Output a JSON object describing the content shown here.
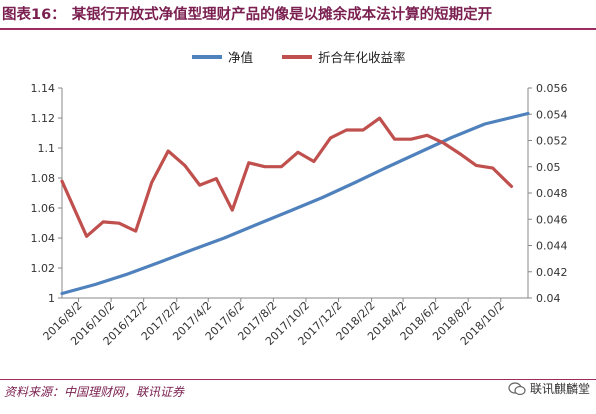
{
  "header": {
    "figure_label": "图表16：",
    "title": "某银行开放式净值型理财产品的像是以摊余成本法计算的短期定开"
  },
  "footer": {
    "source": "资料来源：中国理财网，联讯证券",
    "watermark": "联讯麒麟堂"
  },
  "colors": {
    "nav": "#4f81bd",
    "yield": "#c0504d",
    "accent": "#9c2c60"
  },
  "chart_data": {
    "type": "line",
    "x_tick_labels": [
      "2016/8/2",
      "2016/10/2",
      "2016/12/2",
      "2017/2/2",
      "2017/4/2",
      "2017/6/2",
      "2017/8/2",
      "2017/10/2",
      "2017/12/2",
      "2018/2/2",
      "2018/4/2",
      "2018/6/2",
      "2018/8/2",
      "2018/10/2"
    ],
    "x_range": [
      "2016-07-02",
      "2018-11-22"
    ],
    "y_left": {
      "min": 1,
      "max": 1.14,
      "ticks": [
        "1",
        "1.02",
        "1.04",
        "1.06",
        "1.08",
        "1.1",
        "1.12",
        "1.14"
      ]
    },
    "y_right": {
      "min": 0.04,
      "max": 0.056,
      "ticks": [
        "0.04",
        "0.042",
        "0.044",
        "0.046",
        "0.048",
        "0.05",
        "0.052",
        "0.054",
        "0.056"
      ]
    },
    "legend_position": "top",
    "series": [
      {
        "name": "净值",
        "axis": "left",
        "color": "#4f81bd",
        "points": [
          {
            "x": "2016-07-02",
            "y": 1.003
          },
          {
            "x": "2016-09-02",
            "y": 1.009
          },
          {
            "x": "2016-11-02",
            "y": 1.016
          },
          {
            "x": "2017-01-02",
            "y": 1.024
          },
          {
            "x": "2017-03-02",
            "y": 1.032
          },
          {
            "x": "2017-05-02",
            "y": 1.04
          },
          {
            "x": "2017-07-02",
            "y": 1.049
          },
          {
            "x": "2017-09-02",
            "y": 1.058
          },
          {
            "x": "2017-11-02",
            "y": 1.067
          },
          {
            "x": "2018-01-02",
            "y": 1.077
          },
          {
            "x": "2018-03-02",
            "y": 1.087
          },
          {
            "x": "2018-05-02",
            "y": 1.097
          },
          {
            "x": "2018-07-02",
            "y": 1.107
          },
          {
            "x": "2018-09-02",
            "y": 1.116
          },
          {
            "x": "2018-11-22",
            "y": 1.123
          }
        ]
      },
      {
        "name": "折合年化收益率",
        "axis": "right",
        "color": "#c0504d",
        "points": [
          {
            "x": "2016-07-02",
            "y": 0.0489
          },
          {
            "x": "2016-08-17",
            "y": 0.0447
          },
          {
            "x": "2016-09-17",
            "y": 0.0458
          },
          {
            "x": "2016-10-17",
            "y": 0.0457
          },
          {
            "x": "2016-11-17",
            "y": 0.0451
          },
          {
            "x": "2016-12-17",
            "y": 0.0488
          },
          {
            "x": "2017-01-17",
            "y": 0.0512
          },
          {
            "x": "2017-02-17",
            "y": 0.0501
          },
          {
            "x": "2017-03-17",
            "y": 0.0486
          },
          {
            "x": "2017-04-17",
            "y": 0.0491
          },
          {
            "x": "2017-05-17",
            "y": 0.0467
          },
          {
            "x": "2017-06-17",
            "y": 0.0503
          },
          {
            "x": "2017-07-17",
            "y": 0.05
          },
          {
            "x": "2017-08-17",
            "y": 0.05
          },
          {
            "x": "2017-09-17",
            "y": 0.0511
          },
          {
            "x": "2017-10-17",
            "y": 0.0504
          },
          {
            "x": "2017-11-17",
            "y": 0.0522
          },
          {
            "x": "2017-12-17",
            "y": 0.0528
          },
          {
            "x": "2018-01-17",
            "y": 0.0528
          },
          {
            "x": "2018-02-17",
            "y": 0.0537
          },
          {
            "x": "2018-03-17",
            "y": 0.0521
          },
          {
            "x": "2018-04-17",
            "y": 0.0521
          },
          {
            "x": "2018-05-17",
            "y": 0.0524
          },
          {
            "x": "2018-06-17",
            "y": 0.0518
          },
          {
            "x": "2018-07-17",
            "y": 0.051
          },
          {
            "x": "2018-08-17",
            "y": 0.0501
          },
          {
            "x": "2018-09-17",
            "y": 0.0499
          },
          {
            "x": "2018-10-22",
            "y": 0.0485
          }
        ]
      }
    ]
  }
}
